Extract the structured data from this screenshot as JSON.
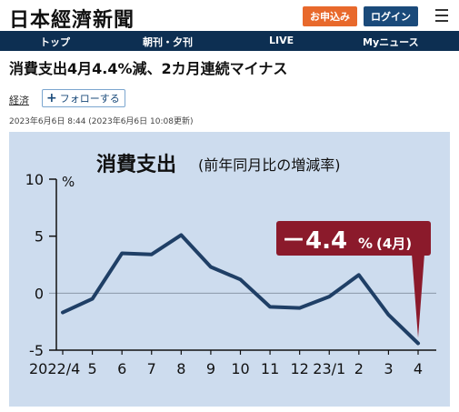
{
  "header": {
    "logo": "日本經濟新聞",
    "subscribe_label": "お申込み",
    "login_label": "ログイン"
  },
  "nav": {
    "items": [
      "トップ",
      "朝刊・夕刊",
      "LIVE",
      "Myニュース"
    ]
  },
  "article": {
    "headline": "消費支出4月4.4%減、2カ月連続マイナス",
    "category": "経済",
    "follow_label": "フォローする",
    "timestamp": "2023年6月6日 8:44 (2023年6月6日 10:08更新)"
  },
  "colors": {
    "accent_orange": "#e8692c",
    "brand_navy": "#0d2f52",
    "line": "#1f3f66",
    "callout": "#8b1a2b",
    "panel_bg": "#cddcee"
  },
  "chart_data": {
    "type": "line",
    "title": "消費支出",
    "subtitle": "(前年同月比の増減率)",
    "ylabel": "%",
    "ylim": [
      -5,
      10
    ],
    "yticks": [
      "10",
      "5",
      "0",
      "-5"
    ],
    "ytick_values": [
      10,
      5,
      0,
      -5
    ],
    "categories": [
      "2022/4",
      "5",
      "6",
      "7",
      "8",
      "9",
      "10",
      "11",
      "12",
      "23/1",
      "2",
      "3",
      "4"
    ],
    "values": [
      -1.7,
      -0.5,
      3.5,
      3.4,
      5.1,
      2.3,
      1.2,
      -1.2,
      -1.3,
      -0.3,
      1.6,
      -1.9,
      -4.4
    ],
    "callout": {
      "value_text": "－4.4",
      "unit_text": "%",
      "month_text": "(4月)"
    }
  }
}
